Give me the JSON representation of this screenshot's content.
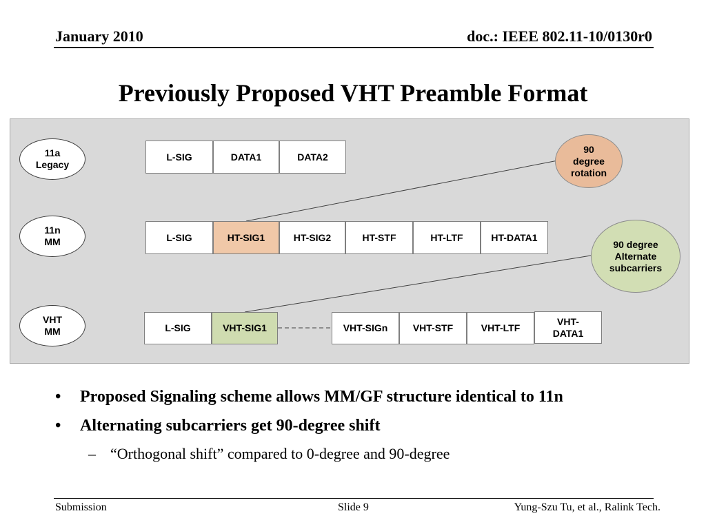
{
  "header": {
    "date": "January 2010",
    "doc": "doc.: IEEE 802.11-10/0130r0"
  },
  "title": "Previously Proposed VHT Preamble Format",
  "diagram": {
    "rows": [
      {
        "label": "11a\nLegacy",
        "cells": [
          "L-SIG",
          "DATA1",
          "DATA2"
        ]
      },
      {
        "label": "11n\nMM",
        "cells": [
          "L-SIG",
          "HT-SIG1",
          "HT-SIG2",
          "HT-STF",
          "HT-LTF",
          "HT-DATA1"
        ]
      },
      {
        "label": "VHT\nMM",
        "cells": [
          "L-SIG",
          "VHT-SIG1",
          "VHT-SIGn",
          "VHT-STF",
          "VHT-LTF",
          "VHT-\nDATA1"
        ]
      }
    ],
    "callouts": [
      {
        "text": "90\ndegree\nrotation",
        "color": "#e9bb9a"
      },
      {
        "text": "90 degree\nAlternate\nsubcarriers",
        "color": "#d2deb4"
      }
    ],
    "highlight_colors": {
      "ht_sig1": "#f0c8a8",
      "vht_sig1": "#cfdcb0"
    }
  },
  "bullets": [
    "Proposed Signaling scheme allows MM/GF structure identical to 11n",
    "Alternating subcarriers get 90-degree shift"
  ],
  "sub_bullets": [
    "“Orthogonal shift” compared to 0-degree and 90-degree"
  ],
  "bullet_marker": "•",
  "sub_bullet_marker": "–",
  "footer": {
    "left": "Submission",
    "center": "Slide 9",
    "right": "Yung-Szu Tu, et al., Ralink Tech."
  }
}
